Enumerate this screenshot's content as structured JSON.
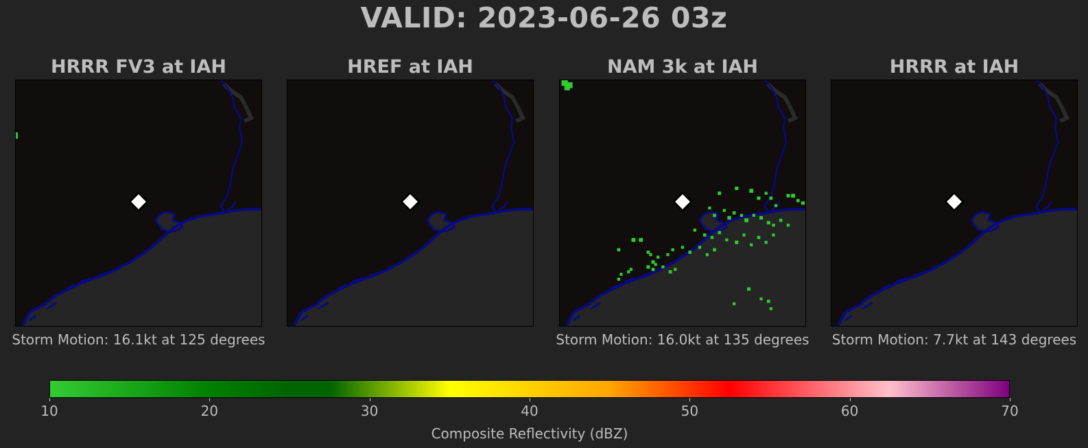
{
  "title": "VALID: 2023-06-26 03z",
  "colors": {
    "background": "#232323",
    "land": "#100d0c",
    "water": "#252525",
    "coastline": "#0a0a80",
    "reflectivity_low": "#2ecc2e",
    "marker": "#ffffff"
  },
  "panels": [
    {
      "title": "HRRR FV3 at IAH",
      "storm_motion": "Storm Motion: 16.1kt at 125 degrees",
      "echoes": [
        [
          0.0,
          0.77,
          1.6
        ],
        [
          0.0,
          0.78,
          1.6
        ]
      ]
    },
    {
      "title": "HREF at IAH",
      "storm_motion": "",
      "echoes": []
    },
    {
      "title": "NAM 3k at IAH",
      "storm_motion": "Storm Motion: 16.0kt at 135 degrees",
      "echoes": [
        [
          0.02,
          0.99,
          2.6
        ],
        [
          0.04,
          0.98,
          2.4
        ],
        [
          0.03,
          0.97,
          2.2
        ],
        [
          0.65,
          0.54,
          1.4
        ],
        [
          0.72,
          0.56,
          1.4
        ],
        [
          0.78,
          0.55,
          1.6
        ],
        [
          0.81,
          0.52,
          1.4
        ],
        [
          0.84,
          0.54,
          1.2
        ],
        [
          0.86,
          0.52,
          1.3
        ],
        [
          0.88,
          0.49,
          1.2
        ],
        [
          0.93,
          0.53,
          1.4
        ],
        [
          0.95,
          0.53,
          1.6
        ],
        [
          0.97,
          0.51,
          1.3
        ],
        [
          0.99,
          0.5,
          1.4
        ],
        [
          0.61,
          0.48,
          1.2
        ],
        [
          0.63,
          0.45,
          1.3
        ],
        [
          0.67,
          0.47,
          1.2
        ],
        [
          0.69,
          0.44,
          1.5
        ],
        [
          0.71,
          0.46,
          1.3
        ],
        [
          0.74,
          0.45,
          1.2
        ],
        [
          0.76,
          0.43,
          1.6
        ],
        [
          0.79,
          0.45,
          1.2
        ],
        [
          0.82,
          0.44,
          1.4
        ],
        [
          0.85,
          0.42,
          1.4
        ],
        [
          0.87,
          0.41,
          1.2
        ],
        [
          0.9,
          0.43,
          1.3
        ],
        [
          0.93,
          0.41,
          1.2
        ],
        [
          0.55,
          0.39,
          1.2
        ],
        [
          0.59,
          0.37,
          1.3
        ],
        [
          0.62,
          0.36,
          1.2
        ],
        [
          0.65,
          0.38,
          1.3
        ],
        [
          0.68,
          0.35,
          1.2
        ],
        [
          0.72,
          0.34,
          1.4
        ],
        [
          0.75,
          0.37,
          1.2
        ],
        [
          0.78,
          0.33,
          1.2
        ],
        [
          0.81,
          0.36,
          1.3
        ],
        [
          0.84,
          0.34,
          1.2
        ],
        [
          0.87,
          0.37,
          1.2
        ],
        [
          0.5,
          0.32,
          1.2
        ],
        [
          0.53,
          0.3,
          1.3
        ],
        [
          0.57,
          0.32,
          1.2
        ],
        [
          0.6,
          0.29,
          1.2
        ],
        [
          0.63,
          0.31,
          1.3
        ],
        [
          0.3,
          0.35,
          1.6
        ],
        [
          0.33,
          0.35,
          1.6
        ],
        [
          0.24,
          0.31,
          1.3
        ],
        [
          0.36,
          0.3,
          1.3
        ],
        [
          0.37,
          0.29,
          1.2
        ],
        [
          0.4,
          0.28,
          1.2
        ],
        [
          0.44,
          0.29,
          1.2
        ],
        [
          0.46,
          0.31,
          1.2
        ],
        [
          0.36,
          0.24,
          1.4
        ],
        [
          0.38,
          0.23,
          1.3
        ],
        [
          0.42,
          0.24,
          1.2
        ],
        [
          0.45,
          0.22,
          1.3
        ],
        [
          0.47,
          0.23,
          1.2
        ],
        [
          0.38,
          0.26,
          1.4
        ],
        [
          0.39,
          0.25,
          1.2
        ],
        [
          0.28,
          0.22,
          1.2
        ],
        [
          0.29,
          0.23,
          1.2
        ],
        [
          0.24,
          0.19,
          1.2
        ],
        [
          0.25,
          0.21,
          1.2
        ],
        [
          0.77,
          0.15,
          1.4
        ],
        [
          0.82,
          0.11,
          1.2
        ],
        [
          0.85,
          0.1,
          1.3
        ],
        [
          0.86,
          0.07,
          1.2
        ],
        [
          0.71,
          0.09,
          1.2
        ]
      ]
    },
    {
      "title": "HRRR at IAH",
      "storm_motion": "Storm Motion: 7.7kt at 143 degrees",
      "echoes": []
    }
  ],
  "colorbar": {
    "label": "Composite Reflectivity (dBZ)",
    "min": 10,
    "max": 70,
    "ticks": [
      "10",
      "20",
      "30",
      "40",
      "50",
      "60",
      "70"
    ],
    "stops": [
      {
        "value": 10,
        "color": "#32cd32"
      },
      {
        "value": 20,
        "color": "#008000"
      },
      {
        "value": 25,
        "color": "#006400"
      },
      {
        "value": 27.5,
        "color": "#006400"
      },
      {
        "value": 35,
        "color": "#ffff00"
      },
      {
        "value": 45,
        "color": "#ffa500"
      },
      {
        "value": 52.5,
        "color": "#ff0000"
      },
      {
        "value": 62.5,
        "color": "#ffc0cb"
      },
      {
        "value": 70,
        "color": "#800080"
      }
    ]
  }
}
